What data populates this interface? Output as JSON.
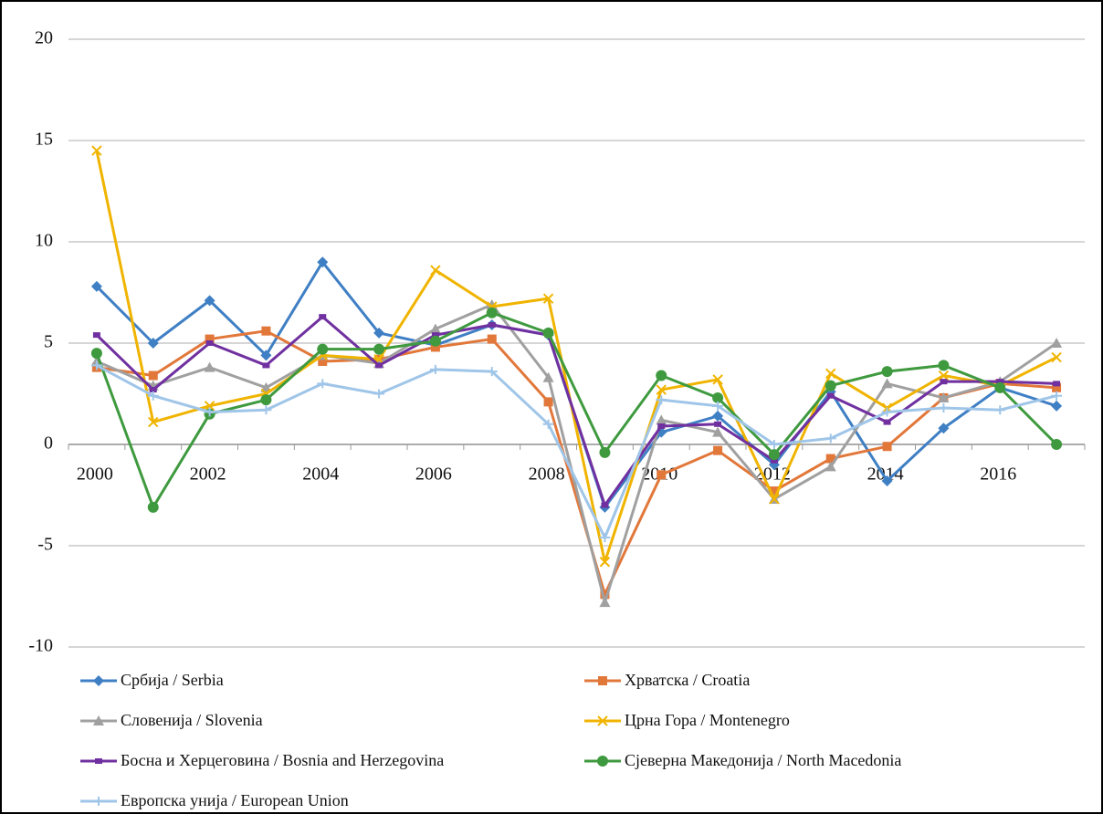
{
  "chart_data": {
    "type": "line",
    "categories": [
      "2000",
      null,
      "2002",
      null,
      "2004",
      null,
      "2006",
      null,
      "2008",
      null,
      "2010",
      null,
      "2012",
      null,
      "2014",
      null,
      "2016",
      null
    ],
    "ylim": [
      -10,
      20
    ],
    "yticks": [
      -10,
      -5,
      0,
      5,
      10,
      15,
      20
    ],
    "grid": true,
    "legend": "bottom",
    "series": [
      {
        "name": "Србија / Serbia",
        "color": "#3f7fc4",
        "marker": "diamond",
        "values": [
          7.8,
          5.0,
          7.1,
          4.4,
          9.0,
          5.5,
          4.9,
          5.9,
          5.4,
          -3.1,
          0.6,
          1.4,
          -1.0,
          2.6,
          -1.8,
          0.8,
          2.8,
          1.9
        ]
      },
      {
        "name": "Хрватска / Croatia",
        "color": "#e2773a",
        "marker": "square",
        "values": [
          3.8,
          3.4,
          5.2,
          5.6,
          4.1,
          4.2,
          4.8,
          5.2,
          2.1,
          -7.4,
          -1.5,
          -0.3,
          -2.3,
          -0.7,
          -0.1,
          2.3,
          3.0,
          2.8
        ]
      },
      {
        "name": "Словенија / Slovenia",
        "color": "#a0a0a0",
        "marker": "triangle",
        "values": [
          4.1,
          2.9,
          3.8,
          2.8,
          4.4,
          4.0,
          5.7,
          6.9,
          3.3,
          -7.8,
          1.2,
          0.6,
          -2.7,
          -1.1,
          3.0,
          2.3,
          3.1,
          5.0
        ]
      },
      {
        "name": "Црна Гора / Montenegro",
        "color": "#f0b400",
        "marker": "cross",
        "values": [
          14.5,
          1.1,
          1.9,
          2.5,
          4.4,
          4.2,
          8.6,
          6.8,
          7.2,
          -5.8,
          2.7,
          3.2,
          -2.7,
          3.5,
          1.8,
          3.4,
          2.9,
          4.3
        ]
      },
      {
        "name": "Босна и Херцеговина / Bosnia and Herzegovina",
        "color": "#7030a0",
        "marker": "smallsquare",
        "values": [
          5.4,
          2.7,
          5.0,
          3.9,
          6.3,
          3.9,
          5.4,
          5.9,
          5.4,
          -3.0,
          0.9,
          1.0,
          -0.8,
          2.4,
          1.1,
          3.1,
          3.1,
          3.0
        ]
      },
      {
        "name": "Сјеверна Македонија  / North Macedonia",
        "color": "#3f9a3f",
        "marker": "circle",
        "values": [
          4.5,
          -3.1,
          1.5,
          2.2,
          4.7,
          4.7,
          5.1,
          6.5,
          5.5,
          -0.4,
          3.4,
          2.3,
          -0.5,
          2.9,
          3.6,
          3.9,
          2.8,
          0.0
        ]
      },
      {
        "name": "Европска унија / European Union",
        "color": "#9fc5e8",
        "marker": "plus",
        "values": [
          3.9,
          2.4,
          1.6,
          1.7,
          3.0,
          2.5,
          3.7,
          3.6,
          1.0,
          -4.6,
          2.2,
          1.9,
          0.0,
          0.3,
          1.6,
          1.8,
          1.7,
          2.4
        ]
      }
    ]
  }
}
